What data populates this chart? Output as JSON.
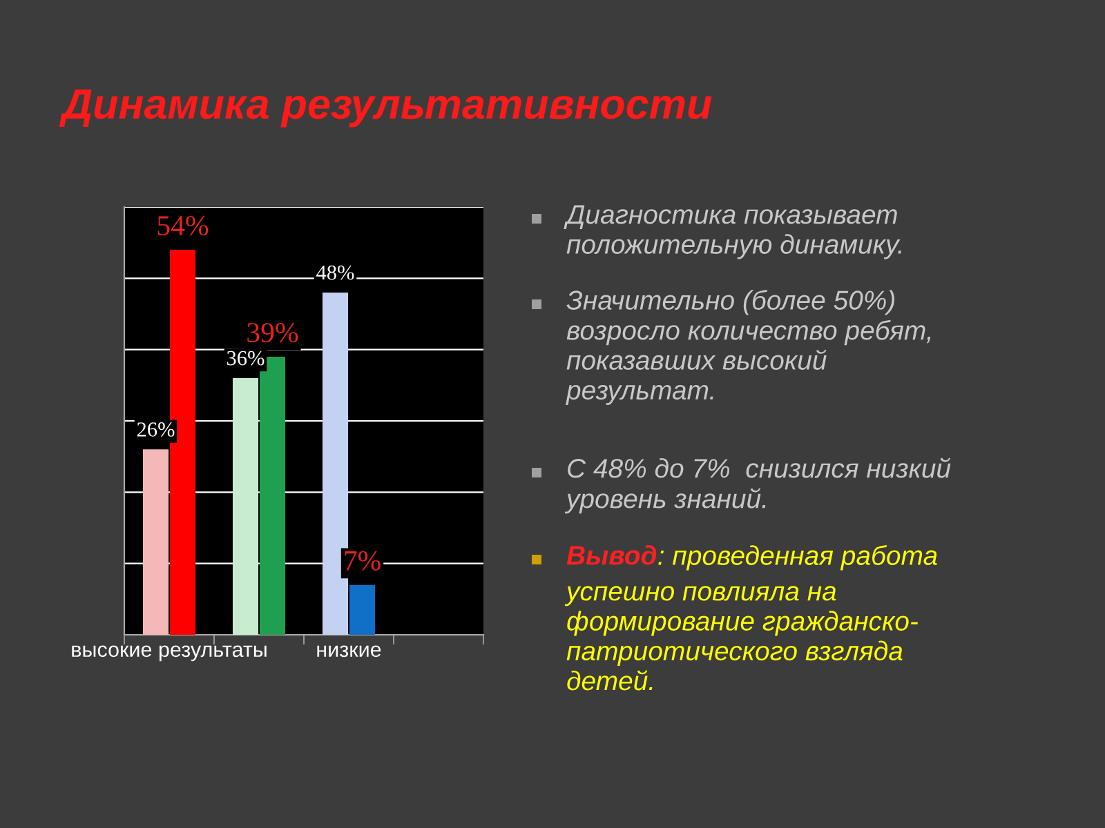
{
  "chart_data": {
    "type": "bar",
    "title": "Динамика результативности",
    "categories": [
      "высокие результаты",
      null,
      "низкие",
      null
    ],
    "series": [
      {
        "colors": [
          "#f4b8b8",
          "#c8ecd0",
          "#c4d2f2",
          "#f4b8b8"
        ],
        "values": [
          26,
          36,
          48,
          null
        ],
        "value_labels": [
          "26%",
          "36%",
          "48%",
          null
        ]
      },
      {
        "colors": [
          "#ff0000",
          "#1fa050",
          "#1070c8",
          "#ff0000"
        ],
        "values": [
          54,
          39,
          7,
          null
        ],
        "value_labels": [
          "54%",
          "39%",
          "7%",
          null
        ]
      }
    ],
    "ylim": [
      0,
      60
    ],
    "yticks": [
      {
        "value": 0,
        "label": null
      },
      {
        "value": 10,
        "label": null
      },
      {
        "value": 20,
        "label": null
      },
      {
        "value": 30,
        "label": null
      },
      {
        "value": 40,
        "label": null
      },
      {
        "value": 50,
        "label": null
      },
      {
        "value": 60,
        "label": null
      }
    ],
    "grid": "y",
    "tick_labels": "x",
    "legend": false,
    "annotations": [
      "Диагностика показывает\nположительную динамику.",
      "Значительно (более 50%)\nвозросло количество ребят,\nпоказавших высокий\nрезультат.",
      "С 48% до 7%  снизился низкий\nуровень знаний.",
      "Вывод",
      ": проведенная работа",
      "успешно повлияла на\nформирование гражданско-\nпатриотического взгляда\nдетей."
    ]
  }
}
